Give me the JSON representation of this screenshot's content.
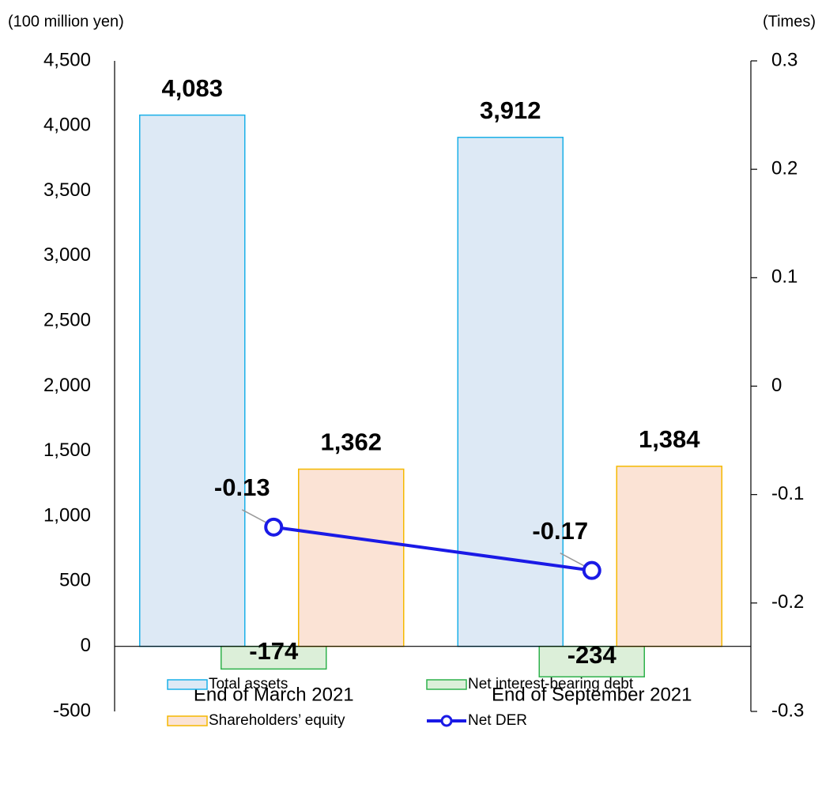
{
  "chart_data": {
    "type": "bar",
    "y_axis_label": "(100 million yen)",
    "y2_axis_label": "(Times)",
    "categories": [
      "End of March 2021",
      "End of September 2021"
    ],
    "series": [
      {
        "name": "Total assets",
        "type": "bar",
        "color": "#dde9f5",
        "edge_color": "#1ab0e8",
        "values": [
          4083,
          3912
        ],
        "value_labels": [
          "4,083",
          "3,912"
        ]
      },
      {
        "name": "Net interest-bearing debt",
        "type": "bar",
        "color": "#dcefd9",
        "edge_color": "#2fb24c",
        "values": [
          -174,
          -234
        ]
      },
      {
        "name": "Shareholders’ equity",
        "type": "bar",
        "color": "#fbe3d5",
        "edge_color": "#f5b800",
        "values": [
          1362,
          1384
        ],
        "value_labels": [
          "1,362",
          "1,384"
        ]
      },
      {
        "name": "Net DER",
        "type": "line",
        "axis": "y2",
        "color": "#1a1ae6",
        "values": [
          -0.13,
          -0.17
        ]
      }
    ],
    "ylim": [
      -500,
      4500
    ],
    "yticks": [
      {
        "value": 4500,
        "label": "4,500"
      },
      {
        "value": 4000,
        "label": "4,000"
      },
      {
        "value": 3500,
        "label": "3,500"
      },
      {
        "value": 3000,
        "label": "3,000"
      },
      {
        "value": 2500,
        "label": "2,500"
      },
      {
        "value": 2000,
        "label": "2,000"
      },
      {
        "value": 1500,
        "label": "1,500"
      },
      {
        "value": 1000,
        "label": "1,000"
      },
      500,
      0,
      -500
    ],
    "y2lim": [
      -0.3,
      0.3
    ],
    "y2ticks": [
      0.3,
      0.2,
      0.1,
      0,
      -0.1,
      -0.2,
      -0.3
    ],
    "grid": false
  }
}
